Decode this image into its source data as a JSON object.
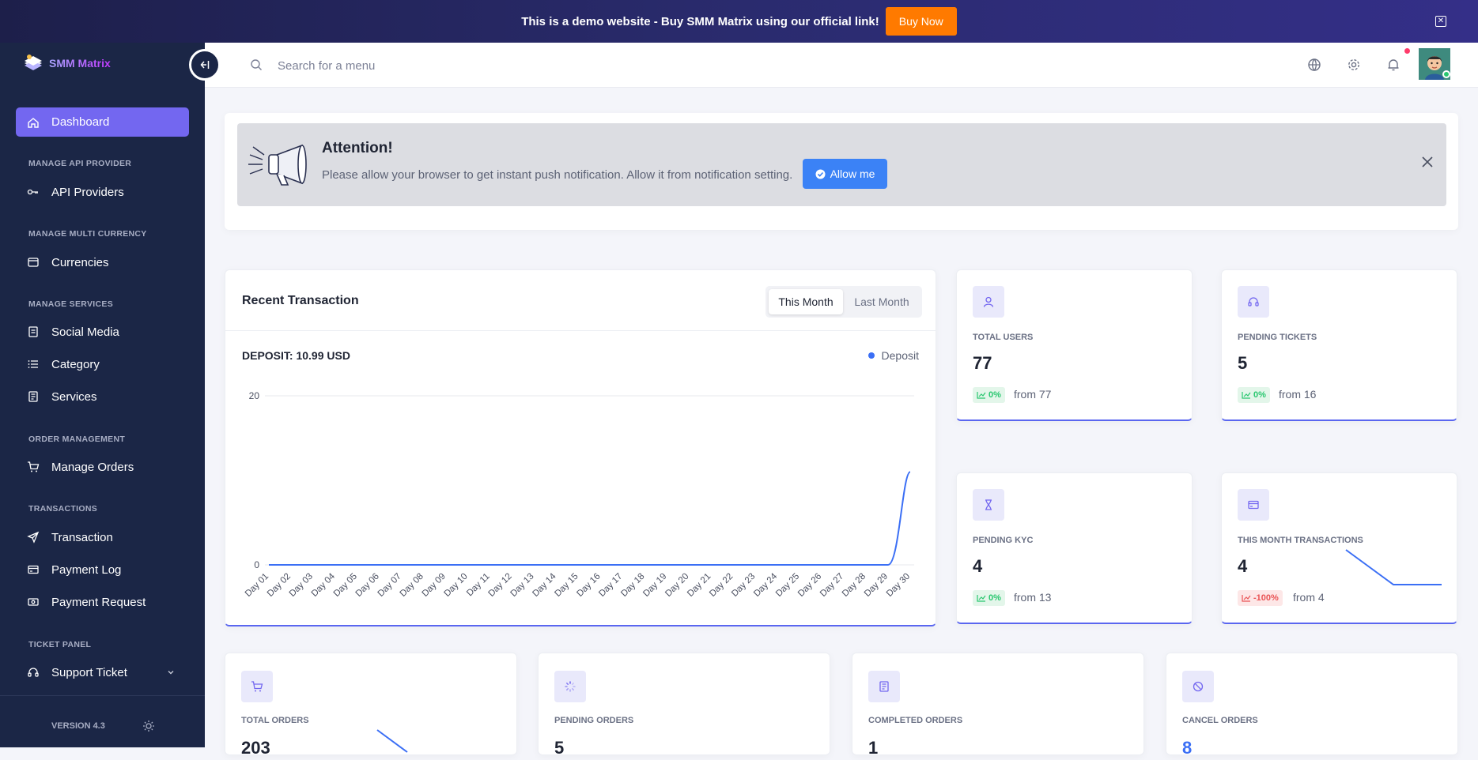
{
  "banner": {
    "text": "This is a demo website - Buy SMM Matrix using our official link!",
    "button": "Buy Now"
  },
  "brand": {
    "name": "SMM Matrix"
  },
  "sidebar": {
    "active": "Dashboard",
    "sections": [
      {
        "title": "MANAGE API PROVIDER",
        "items": [
          "API Providers"
        ]
      },
      {
        "title": "MANAGE MULTI CURRENCY",
        "items": [
          "Currencies"
        ]
      },
      {
        "title": "MANAGE SERVICES",
        "items": [
          "Social Media",
          "Category",
          "Services"
        ]
      },
      {
        "title": "ORDER MANAGEMENT",
        "items": [
          "Manage Orders"
        ]
      },
      {
        "title": "TRANSACTIONS",
        "items": [
          "Transaction",
          "Payment Log",
          "Payment Request"
        ]
      },
      {
        "title": "TICKET PANEL",
        "items": [
          "Support Ticket"
        ]
      }
    ],
    "version": "VERSION 4.3"
  },
  "header": {
    "search_placeholder": "Search for a menu"
  },
  "attention": {
    "title": "Attention!",
    "message": "Please allow your browser to get instant push notification. Allow it from notification setting.",
    "button": "Allow me"
  },
  "transactions": {
    "title": "Recent Transaction",
    "tabs": [
      "This Month",
      "Last Month"
    ],
    "active_tab": "This Month",
    "total_label": "DEPOSIT: 10.99 USD",
    "legend": "Deposit"
  },
  "chart_data": {
    "type": "line",
    "x": [
      "Day 01",
      "Day 02",
      "Day 03",
      "Day 04",
      "Day 05",
      "Day 06",
      "Day 07",
      "Day 08",
      "Day 09",
      "Day 10",
      "Day 11",
      "Day 12",
      "Day 13",
      "Day 14",
      "Day 15",
      "Day 16",
      "Day 17",
      "Day 18",
      "Day 19",
      "Day 20",
      "Day 21",
      "Day 22",
      "Day 23",
      "Day 24",
      "Day 25",
      "Day 26",
      "Day 27",
      "Day 28",
      "Day 29",
      "Day 30"
    ],
    "series": [
      {
        "name": "Deposit",
        "color": "#3b6ff5",
        "values": [
          0,
          0,
          0,
          0,
          0,
          0,
          0,
          0,
          0,
          0,
          0,
          0,
          0,
          0,
          0,
          0,
          0,
          0,
          0,
          0,
          0,
          0,
          0,
          0,
          0,
          0,
          0,
          0,
          0,
          10.99
        ]
      }
    ],
    "ylim": [
      0,
      20
    ],
    "yticks": [
      0,
      20
    ],
    "grid": true,
    "legend_position": "top-right"
  },
  "stats": [
    {
      "label": "TOTAL USERS",
      "value": "77",
      "change": "0%",
      "from": "from 77",
      "icon": "user-icon",
      "trend": "up"
    },
    {
      "label": "PENDING TICKETS",
      "value": "5",
      "change": "0%",
      "from": "from 16",
      "icon": "headset-icon",
      "trend": "up"
    },
    {
      "label": "PENDING KYC",
      "value": "4",
      "change": "0%",
      "from": "from 13",
      "icon": "hourglass-icon",
      "trend": "up"
    },
    {
      "label": "THIS MONTH TRANSACTIONS",
      "value": "4",
      "change": "-100%",
      "from": "from 4",
      "icon": "credit-card-icon",
      "trend": "down"
    }
  ],
  "orders": [
    {
      "label": "TOTAL ORDERS",
      "value": "203",
      "icon": "cart-icon"
    },
    {
      "label": "PENDING ORDERS",
      "value": "5",
      "icon": "loader-icon"
    },
    {
      "label": "COMPLETED ORDERS",
      "value": "1",
      "icon": "clipboard-icon"
    },
    {
      "label": "CANCEL ORDERS",
      "value": "8",
      "icon": "ban-icon"
    }
  ],
  "colors": {
    "primary": "#7367f0",
    "sidebar": "#1b2646",
    "accent_blue": "#3b82f6",
    "success": "#28c76f",
    "danger": "#ea5455",
    "banner_button": "#ff7a00"
  }
}
